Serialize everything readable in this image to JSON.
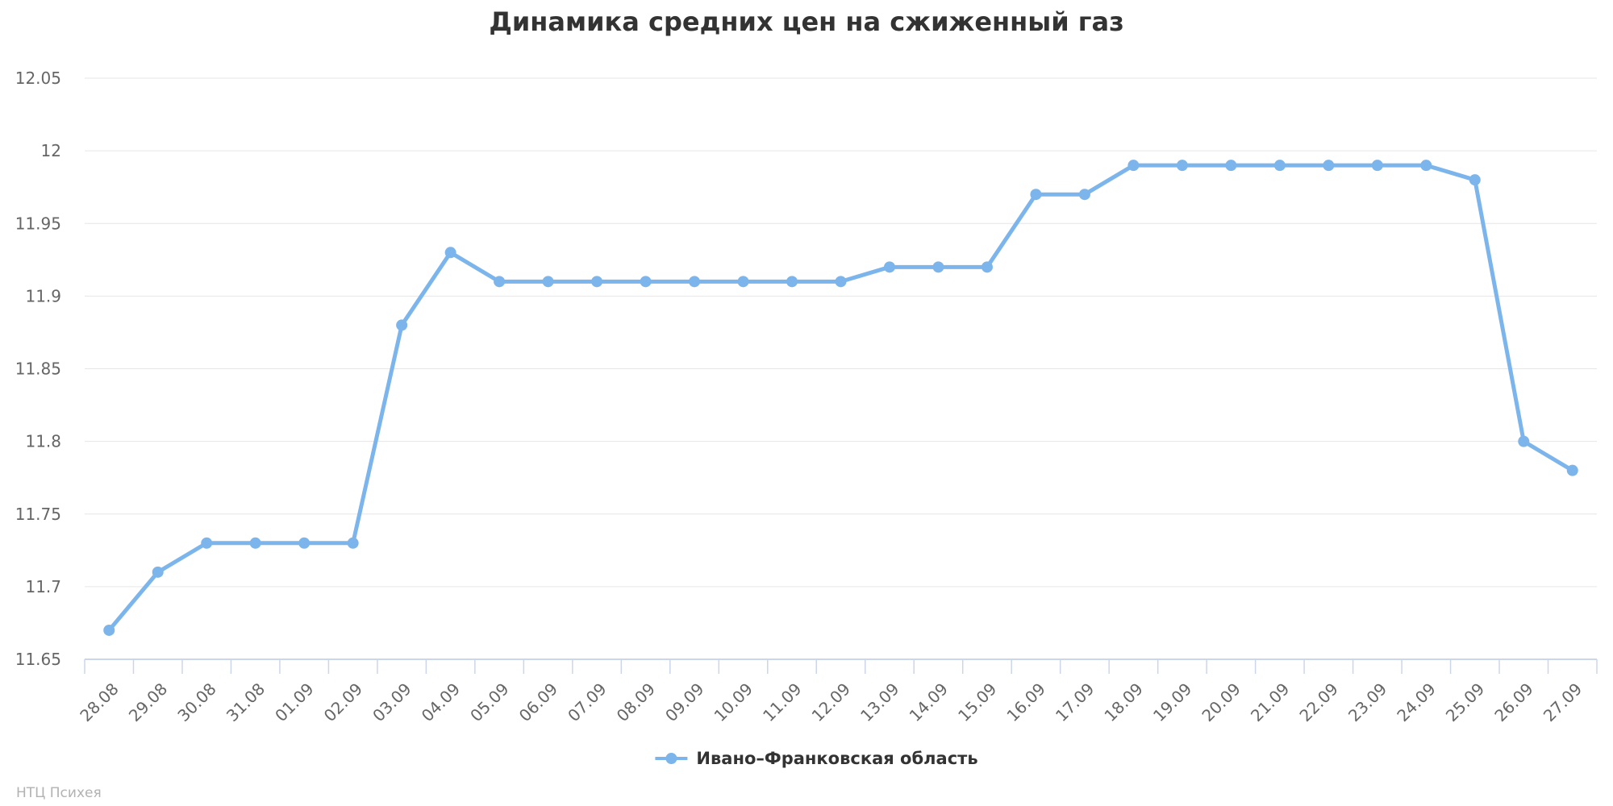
{
  "title": "Динамика средних цен на сжиженный газ",
  "watermark": "НТЦ Психея",
  "legend": {
    "label": "Ивано–Франковская область"
  },
  "colors": {
    "background": "#ffffff",
    "series": "#7cb5ec",
    "grid": "#e6e6e6",
    "axis": "#ccd6eb",
    "title_text": "#333333",
    "axis_label_text": "#666666",
    "legend_text": "#333333",
    "watermark_text": "#b2b2b2"
  },
  "chart_data": {
    "type": "line",
    "title": "Динамика средних цен на сжиженный газ",
    "xlabel": "",
    "ylabel": "",
    "grid": true,
    "legend_position": "bottom",
    "ylim": [
      11.65,
      12.05
    ],
    "ytick_values": [
      12.05,
      12,
      11.95,
      11.9,
      11.85,
      11.8,
      11.75,
      11.7,
      11.65
    ],
    "ytick_labels": [
      "12.05",
      "12",
      "11.95",
      "11.9",
      "11.85",
      "11.8",
      "11.75",
      "11.7",
      "11.65"
    ],
    "categories": [
      "28.08",
      "29.08",
      "30.08",
      "31.08",
      "01.09",
      "02.09",
      "03.09",
      "04.09",
      "05.09",
      "06.09",
      "07.09",
      "08.09",
      "09.09",
      "10.09",
      "11.09",
      "12.09",
      "13.09",
      "14.09",
      "15.09",
      "16.09",
      "17.09",
      "18.09",
      "19.09",
      "20.09",
      "21.09",
      "22.09",
      "23.09",
      "24.09",
      "25.09",
      "26.09",
      "27.09"
    ],
    "series": [
      {
        "name": "Ивано–Франковская область",
        "color": "#7cb5ec",
        "values": [
          11.67,
          11.71,
          11.73,
          11.73,
          11.73,
          11.73,
          11.88,
          11.93,
          11.91,
          11.91,
          11.91,
          11.91,
          11.91,
          11.91,
          11.91,
          11.91,
          11.92,
          11.92,
          11.92,
          11.97,
          11.97,
          11.99,
          11.99,
          11.99,
          11.99,
          11.99,
          11.99,
          11.99,
          11.98,
          11.8,
          11.78
        ]
      }
    ]
  }
}
